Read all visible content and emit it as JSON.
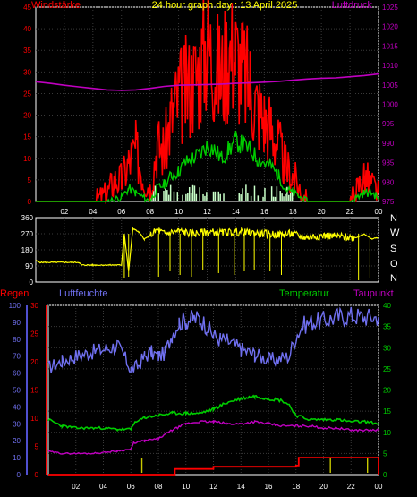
{
  "chart_data": [
    {
      "type": "line",
      "title": "24 hour graph day : 13 April 2025",
      "left_label": "Windstärke",
      "right_label": "Luftdruck",
      "x_ticks": [
        "02",
        "04",
        "06",
        "08",
        "10",
        "12",
        "14",
        "16",
        "18",
        "20",
        "22",
        "00"
      ],
      "y_left_ticks": [
        0,
        5,
        10,
        15,
        20,
        25,
        30,
        35,
        40,
        45
      ],
      "ylim_left": [
        0,
        45
      ],
      "y_right_ticks": [
        975,
        980,
        985,
        990,
        995,
        1000,
        1005,
        1010,
        1015,
        1020,
        1025
      ],
      "ylim_right": [
        975,
        1025
      ],
      "xlim": [
        0,
        24
      ],
      "series": [
        {
          "name": "Luftdruck",
          "color": "#c000c0",
          "axis": "right",
          "x": [
            0,
            1,
            2,
            3,
            4,
            5,
            6,
            7,
            8,
            9,
            10,
            11,
            12,
            13,
            14,
            15,
            16,
            17,
            18,
            19,
            20,
            21,
            22,
            23,
            24
          ],
          "y": [
            1005.8,
            1005.4,
            1004.9,
            1004.5,
            1004.1,
            1003.7,
            1003.6,
            1003.7,
            1004.1,
            1004.6,
            1004.9,
            1005.0,
            1005.1,
            1005.2,
            1005.4,
            1005.5,
            1005.7,
            1005.9,
            1006.2,
            1006.5,
            1006.7,
            1006.8,
            1007.1,
            1007.4,
            1007.8
          ]
        }
      ],
      "gust_envelope": {
        "color": "#ff0000",
        "x": [
          0,
          4,
          5,
          5.5,
          6,
          6.5,
          7,
          7.5,
          8,
          8.5,
          9,
          9.5,
          10,
          10.5,
          11,
          11.5,
          12,
          12.5,
          13,
          13.5,
          14,
          14.5,
          15,
          15.5,
          16,
          16.5,
          17,
          17.5,
          18,
          18.5,
          19,
          20,
          21,
          22,
          22.5,
          23,
          23.5,
          24
        ],
        "y": [
          0,
          0,
          2,
          5,
          5,
          9,
          12,
          6,
          3,
          13,
          12,
          20,
          24,
          26,
          28,
          31,
          37,
          32,
          29,
          35,
          34,
          30,
          27,
          22,
          19,
          17,
          13,
          8,
          6,
          3,
          0,
          0,
          0,
          0,
          3,
          6,
          4,
          2
        ]
      },
      "wind_avg": {
        "color": "#00cc00",
        "x": [
          0,
          5,
          6,
          6.5,
          7,
          7.5,
          8,
          8.5,
          9,
          9.5,
          10,
          10.5,
          11,
          11.5,
          12,
          12.5,
          13,
          13.5,
          14,
          14.5,
          15,
          15.5,
          16,
          16.5,
          17,
          17.5,
          18,
          18.5,
          19,
          22,
          23,
          23.5,
          24
        ],
        "y": [
          0,
          0,
          1,
          3,
          2,
          1,
          0,
          3,
          4,
          6,
          7,
          9,
          10,
          11,
          13,
          12,
          10,
          12,
          14,
          13,
          12,
          10,
          9,
          8,
          6,
          3,
          2,
          1,
          0,
          0,
          2,
          2,
          1
        ]
      },
      "calm_bars": {
        "color": "#c8ffc8",
        "from": 8,
        "to": 18
      }
    },
    {
      "type": "line",
      "compass": [
        "N",
        "W",
        "S",
        "O",
        "N"
      ],
      "y_ticks": [
        0,
        90,
        180,
        270,
        360
      ],
      "ylim": [
        0,
        360
      ],
      "xlim": [
        0,
        24
      ],
      "series": [
        {
          "name": "Windrichtung",
          "color": "#ffff00",
          "x": [
            0,
            0.3,
            1.5,
            3,
            3.2,
            4,
            5,
            6,
            6.2,
            6.5,
            6.8,
            7.2,
            7.6,
            8,
            8.5,
            9,
            10,
            11,
            12,
            13,
            14,
            15,
            16,
            17,
            18,
            18.5,
            19,
            20,
            21,
            22,
            22.5,
            23,
            23.5,
            24
          ],
          "y": [
            120,
            110,
            110,
            110,
            95,
            95,
            95,
            95,
            270,
            60,
            300,
            280,
            240,
            260,
            290,
            270,
            285,
            270,
            280,
            275,
            280,
            275,
            270,
            265,
            270,
            255,
            250,
            260,
            255,
            250,
            250,
            270,
            240,
            250
          ]
        }
      ],
      "spikes_x": [
        6.2,
        6.5,
        7.3,
        8.6,
        9.4,
        10.1,
        10.9,
        11.7,
        12.8,
        13.9,
        14.6,
        15.3,
        16.4,
        17.2,
        22.6,
        23.4
      ],
      "spikes_y": [
        20,
        30,
        40,
        30,
        60,
        40,
        30,
        70,
        50,
        40,
        60,
        70,
        60,
        40,
        10,
        20
      ]
    },
    {
      "type": "line",
      "labels": {
        "rain": "Regen",
        "humidity": "Luftfeuchte",
        "temperature": "Temperatur",
        "dewpoint": "Taupunkt"
      },
      "x_ticks": [
        "02",
        "04",
        "06",
        "08",
        "10",
        "12",
        "14",
        "16",
        "18",
        "20",
        "22",
        "00"
      ],
      "y_humidity_ticks": [
        0,
        10,
        20,
        30,
        40,
        50,
        60,
        70,
        80,
        90,
        100
      ],
      "ylim_humidity": [
        0,
        100
      ],
      "y_rain_ticks": [
        0,
        5,
        10,
        15,
        20,
        25,
        30
      ],
      "ylim_rain": [
        0,
        30
      ],
      "y_temp_ticks": [
        0,
        5,
        10,
        15,
        20,
        25,
        30,
        35,
        40
      ],
      "ylim_temp": [
        0,
        40
      ],
      "xlim": [
        0,
        24
      ],
      "series": [
        {
          "name": "Luftfeuchte",
          "color": "#7070f0",
          "axis": "humidity",
          "x": [
            0,
            1,
            2,
            3,
            4,
            5,
            5.5,
            6,
            6.5,
            7,
            7.5,
            8,
            8.5,
            9,
            9.5,
            10,
            10.5,
            11,
            11.5,
            12,
            12.5,
            13,
            14,
            15,
            16,
            16.5,
            17,
            17.5,
            18,
            18.5,
            19,
            20,
            21,
            22,
            23,
            24
          ],
          "y": [
            63,
            67,
            70,
            72,
            74,
            76,
            70,
            62,
            64,
            70,
            72,
            70,
            72,
            83,
            90,
            91,
            92,
            92,
            88,
            82,
            80,
            79,
            74,
            71,
            68,
            68,
            69,
            70,
            82,
            88,
            90,
            91,
            93,
            94,
            93,
            93
          ]
        },
        {
          "name": "Temperatur",
          "color": "#00cc00",
          "axis": "temp",
          "x": [
            0,
            1,
            2,
            3,
            4,
            5,
            6,
            6.2,
            7,
            8,
            9,
            10,
            11,
            12,
            13,
            14,
            15,
            16,
            17,
            17.5,
            18,
            19,
            20,
            21,
            22,
            23,
            24
          ],
          "y": [
            13,
            11.5,
            11,
            11,
            11,
            10.7,
            10.7,
            12,
            13.5,
            14,
            14.5,
            14.5,
            14.5,
            15.5,
            17,
            18,
            18.5,
            18,
            17.5,
            16.5,
            14,
            13,
            13,
            13,
            12.5,
            12.5,
            12
          ]
        },
        {
          "name": "Taupunkt",
          "color": "#c000c0",
          "axis": "temp",
          "x": [
            0,
            1,
            2,
            3,
            4,
            5,
            6,
            6.2,
            7,
            8,
            9,
            10,
            11,
            12,
            13,
            14,
            15,
            16,
            17,
            18,
            19,
            20,
            21,
            22,
            23,
            24
          ],
          "y": [
            5.5,
            5,
            5,
            5,
            5.2,
            5.6,
            6,
            7.5,
            8,
            8.5,
            10.5,
            12,
            12.5,
            12.5,
            12,
            12,
            12.5,
            12,
            11.5,
            11.5,
            11.5,
            11,
            11,
            10.5,
            10.5,
            10.5
          ]
        },
        {
          "name": "Regen",
          "color": "#ff0000",
          "axis": "rain",
          "x": [
            0,
            6,
            8,
            9,
            9.2,
            10,
            12,
            15,
            17,
            18,
            18.2,
            20,
            22,
            23,
            23.8,
            24
          ],
          "y": [
            0,
            0,
            0,
            0,
            1,
            1,
            1.4,
            1.4,
            1.4,
            1.6,
            3,
            3,
            3,
            3,
            3,
            0
          ]
        }
      ],
      "rain_ticks_x": [
        6.8,
        20.5,
        23.2
      ]
    }
  ]
}
